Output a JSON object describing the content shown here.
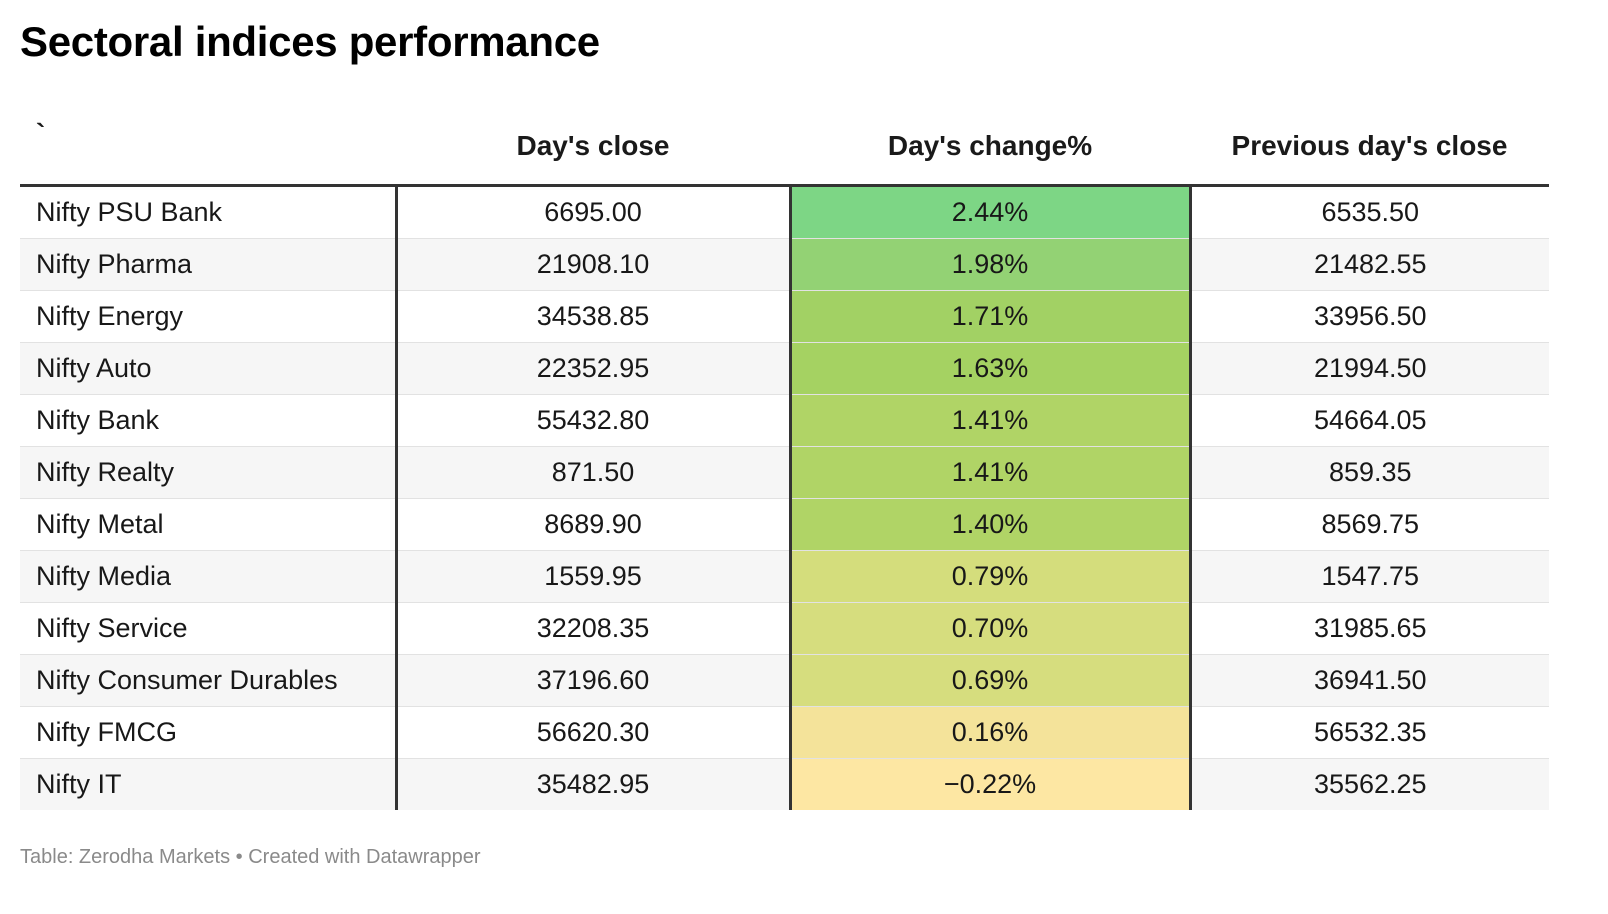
{
  "chart_data": {
    "type": "table",
    "title": "Sectoral indices performance",
    "columns": [
      "`",
      "Day's close",
      "Day's change%",
      "Previous day's close"
    ],
    "rows": [
      {
        "name": "Nifty PSU Bank",
        "close": "6695.00",
        "change": "2.44%",
        "prev": "6535.50",
        "change_value": 2.44,
        "color": "#7dd685"
      },
      {
        "name": "Nifty Pharma",
        "close": "21908.10",
        "change": "1.98%",
        "prev": "21482.55",
        "change_value": 1.98,
        "color": "#93d274"
      },
      {
        "name": "Nifty Energy",
        "close": "34538.85",
        "change": "1.71%",
        "prev": "33956.50",
        "change_value": 1.71,
        "color": "#a2d164"
      },
      {
        "name": "Nifty Auto",
        "close": "22352.95",
        "change": "1.63%",
        "prev": "21994.50",
        "change_value": 1.63,
        "color": "#a5d262"
      },
      {
        "name": "Nifty Bank",
        "close": "55432.80",
        "change": "1.41%",
        "prev": "54664.05",
        "change_value": 1.41,
        "color": "#b0d466"
      },
      {
        "name": "Nifty Realty",
        "close": "871.50",
        "change": "1.41%",
        "prev": "859.35",
        "change_value": 1.41,
        "color": "#b0d466"
      },
      {
        "name": "Nifty Metal",
        "close": "8689.90",
        "change": "1.40%",
        "prev": "8569.75",
        "change_value": 1.4,
        "color": "#b0d466"
      },
      {
        "name": "Nifty Media",
        "close": "1559.95",
        "change": "0.79%",
        "prev": "1547.75",
        "change_value": 0.79,
        "color": "#d4dd7c"
      },
      {
        "name": "Nifty Service",
        "close": "32208.35",
        "change": "0.70%",
        "prev": "31985.65",
        "change_value": 0.7,
        "color": "#d6dd7e"
      },
      {
        "name": "Nifty Consumer Durables",
        "close": "37196.60",
        "change": "0.69%",
        "prev": "36941.50",
        "change_value": 0.69,
        "color": "#d6dd7e"
      },
      {
        "name": "Nifty FMCG",
        "close": "56620.30",
        "change": "0.16%",
        "prev": "56532.35",
        "change_value": 0.16,
        "color": "#f4e39a"
      },
      {
        "name": "Nifty IT",
        "close": "35482.95",
        "change": "−0.22%",
        "prev": "35562.25",
        "change_value": -0.22,
        "color": "#fde7a3"
      }
    ]
  },
  "footer": {
    "source": "Table: Zerodha Markets • Created with Datawrapper"
  }
}
